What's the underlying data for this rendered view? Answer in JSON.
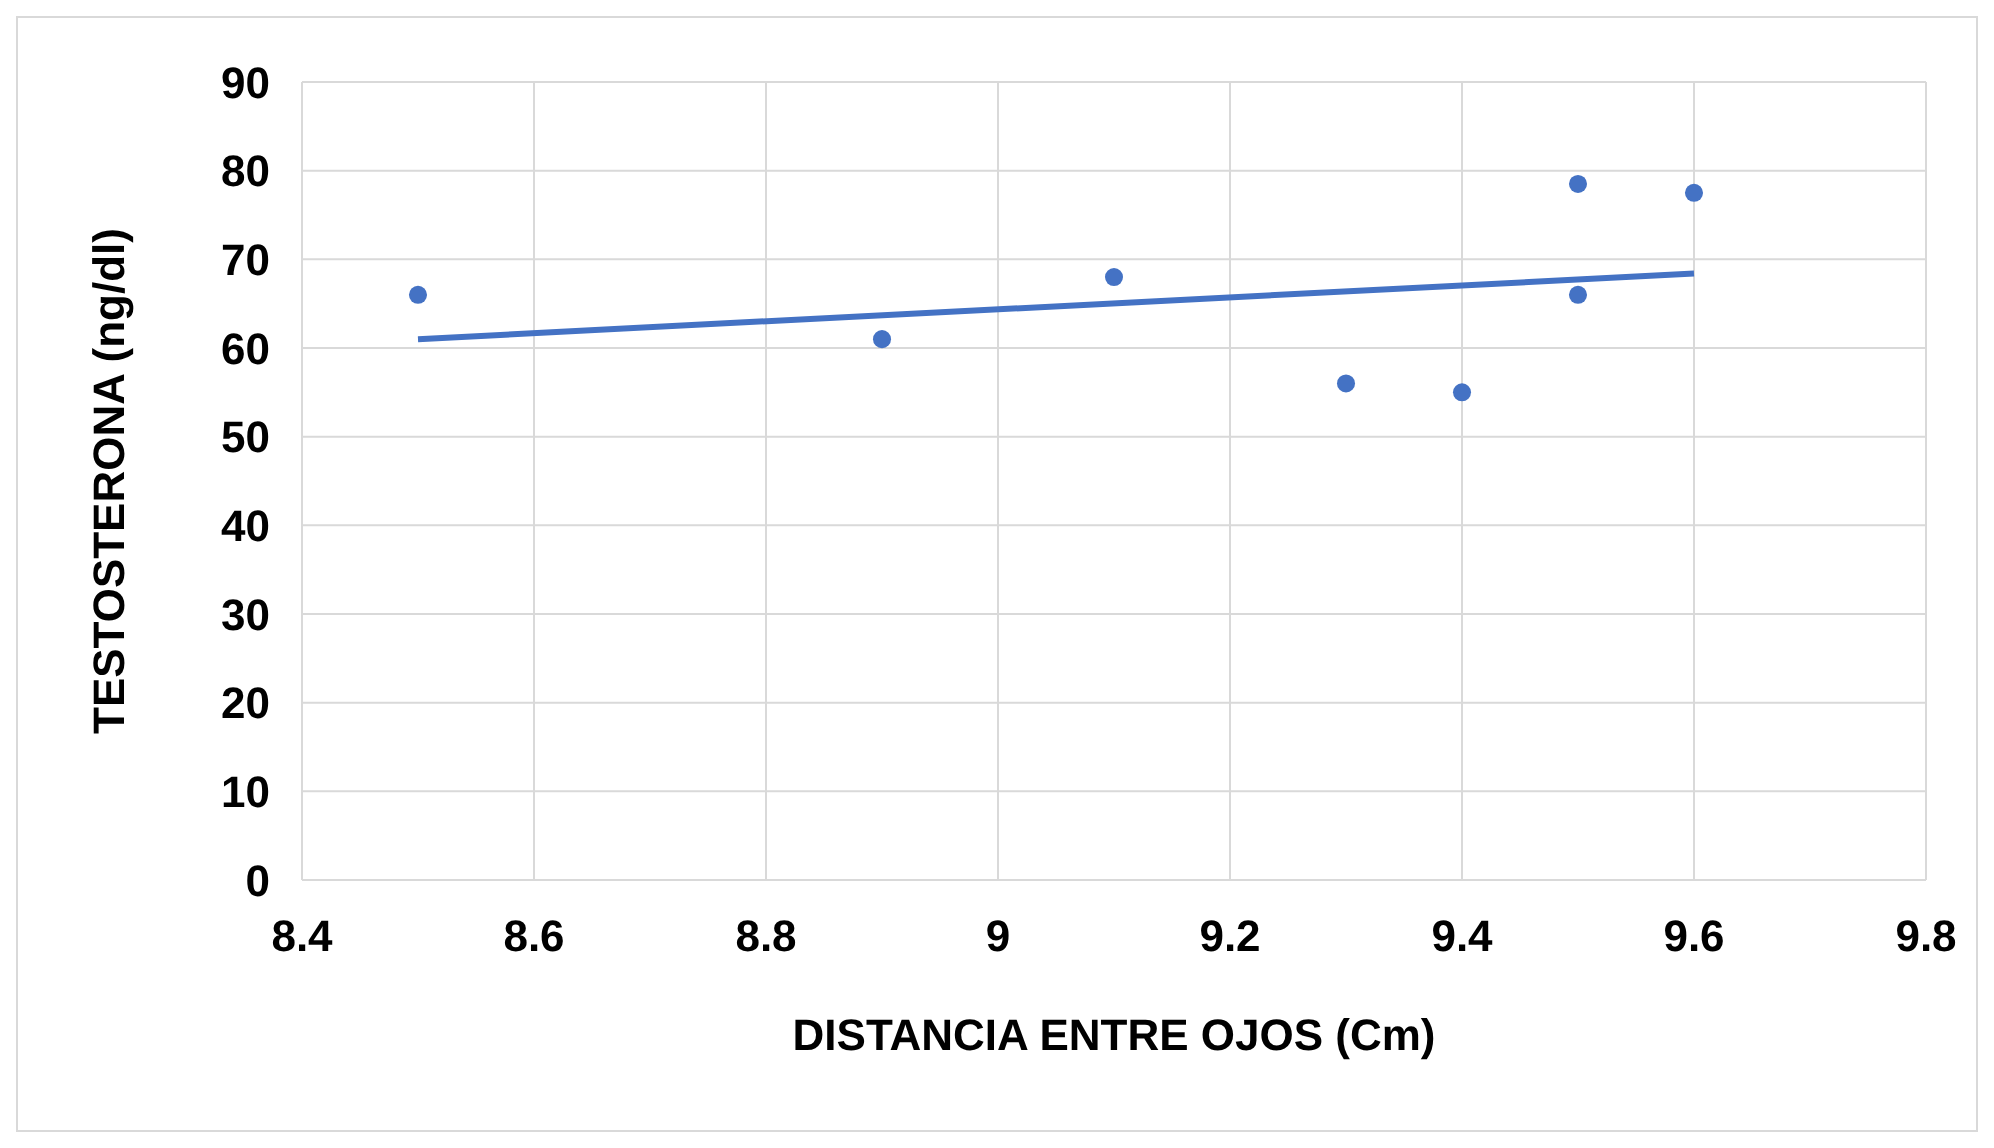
{
  "chart_data": {
    "type": "scatter",
    "xlabel": "DISTANCIA ENTRE OJOS  (Cm)",
    "ylabel": "TESTOSTERONA  (ng/dl)",
    "series": [
      {
        "color": "#4472c4",
        "marker": "circle",
        "x": [
          8.5,
          8.9,
          9.1,
          9.3,
          9.4,
          9.5,
          9.5,
          9.6
        ],
        "values": [
          66,
          61,
          68,
          56,
          55,
          78.5,
          66,
          77.5
        ]
      },
      {
        "type": "line",
        "color": "#4472c4",
        "x": [
          8.5,
          9.6
        ],
        "values": [
          61,
          68.4
        ]
      }
    ],
    "xlim": [
      8.4,
      9.8
    ],
    "xticks": [
      8.4,
      8.6,
      8.8,
      9,
      9.2,
      9.4,
      9.6,
      9.8
    ],
    "ylim": [
      0,
      90
    ],
    "yticks": [
      0,
      10,
      20,
      30,
      40,
      50,
      60,
      70,
      80,
      90
    ],
    "grid": true,
    "legend": false,
    "line_style": "solid"
  }
}
